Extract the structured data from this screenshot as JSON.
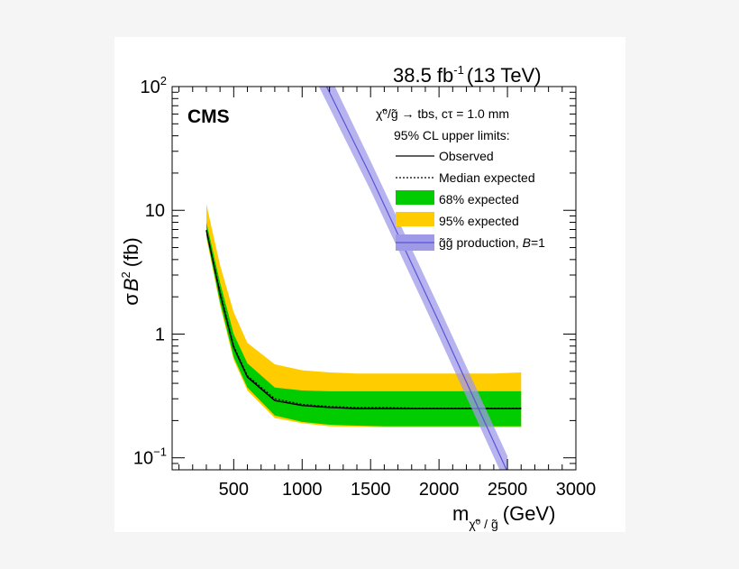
{
  "chart_data": {
    "type": "line",
    "lumi_label": "38.5 fb",
    "lumi_exponent": "-1",
    "energy_label": "(13 TeV)",
    "experiment": "CMS",
    "xlabel": {
      "main": "m",
      "sub": "χ̃⁰ / g̃",
      "unit": "(GeV)"
    },
    "ylabel": {
      "sigma": "σ",
      "b": "B",
      "b_exp": "2",
      "unit": "(fb)"
    },
    "xlim": [
      50,
      3000
    ],
    "ylim": [
      0.08,
      100
    ],
    "y_scale": "log",
    "x_ticks": [
      500,
      1000,
      1500,
      2000,
      2500,
      3000
    ],
    "x_tick_labels": [
      "500",
      "1000",
      "1500",
      "2000",
      "2500",
      "3000"
    ],
    "y_ticks": [
      {
        "value": 100,
        "base": "10",
        "exp": "2"
      },
      {
        "value": 10,
        "base": "10",
        "exp": ""
      },
      {
        "value": 1,
        "base": "1",
        "exp": ""
      },
      {
        "value": 0.1,
        "base": "10",
        "exp": "−1"
      }
    ],
    "legend": {
      "placement": "top-right",
      "header1": "χ̃⁰/g̃ → tbs, cτ = 1.0 mm",
      "header2": "95% CL upper limits:",
      "entries": [
        {
          "label": "Observed",
          "style": "solid",
          "color": "#000000"
        },
        {
          "label": "Median expected",
          "style": "dashed",
          "color": "#000000"
        },
        {
          "label": "68% expected",
          "style": "band",
          "color": "#00cc00"
        },
        {
          "label": "95% expected",
          "style": "band",
          "color": "#ffcc00"
        },
        {
          "label": "g̃g̃ production, ",
          "label_ital": "B",
          "label_tail": "=1",
          "style": "theory",
          "color": "#7b73ea"
        }
      ]
    },
    "colors": {
      "band68": "#00cc00",
      "band95": "#ffcc00",
      "theory": "#7b73ea",
      "theory_band": "#9f9ae8"
    },
    "x": [
      300,
      400,
      500,
      600,
      800,
      1000,
      1200,
      1400,
      1600,
      1800,
      2000,
      2200,
      2400,
      2600
    ],
    "observed": [
      6.9,
      2.1,
      0.78,
      0.45,
      0.29,
      0.265,
      0.255,
      0.25,
      0.25,
      0.25,
      0.25,
      0.25,
      0.25,
      0.25
    ],
    "expected": [
      6.9,
      2.2,
      0.8,
      0.46,
      0.3,
      0.27,
      0.26,
      0.255,
      0.255,
      0.252,
      0.252,
      0.252,
      0.252,
      0.252
    ],
    "band68_low": [
      6.3,
      1.8,
      0.65,
      0.37,
      0.22,
      0.195,
      0.185,
      0.182,
      0.18,
      0.18,
      0.18,
      0.18,
      0.18,
      0.18
    ],
    "band68_high": [
      8.0,
      2.6,
      1.0,
      0.58,
      0.37,
      0.35,
      0.345,
      0.345,
      0.345,
      0.345,
      0.345,
      0.345,
      0.345,
      0.345
    ],
    "band95_low": [
      6.0,
      1.7,
      0.62,
      0.35,
      0.21,
      0.19,
      0.18,
      0.178,
      0.177,
      0.177,
      0.177,
      0.177,
      0.177,
      0.177
    ],
    "band95_high": [
      11.2,
      3.6,
      1.5,
      0.85,
      0.57,
      0.51,
      0.49,
      0.48,
      0.48,
      0.48,
      0.48,
      0.48,
      0.48,
      0.49
    ],
    "theory": {
      "x": [
        1100,
        1500,
        2000,
        2500
      ],
      "central": [
        150,
        19,
        1.25,
        0.077
      ],
      "low": [
        112,
        14.5,
        0.95,
        0.058
      ],
      "high": [
        210,
        25,
        1.65,
        0.103
      ]
    }
  }
}
